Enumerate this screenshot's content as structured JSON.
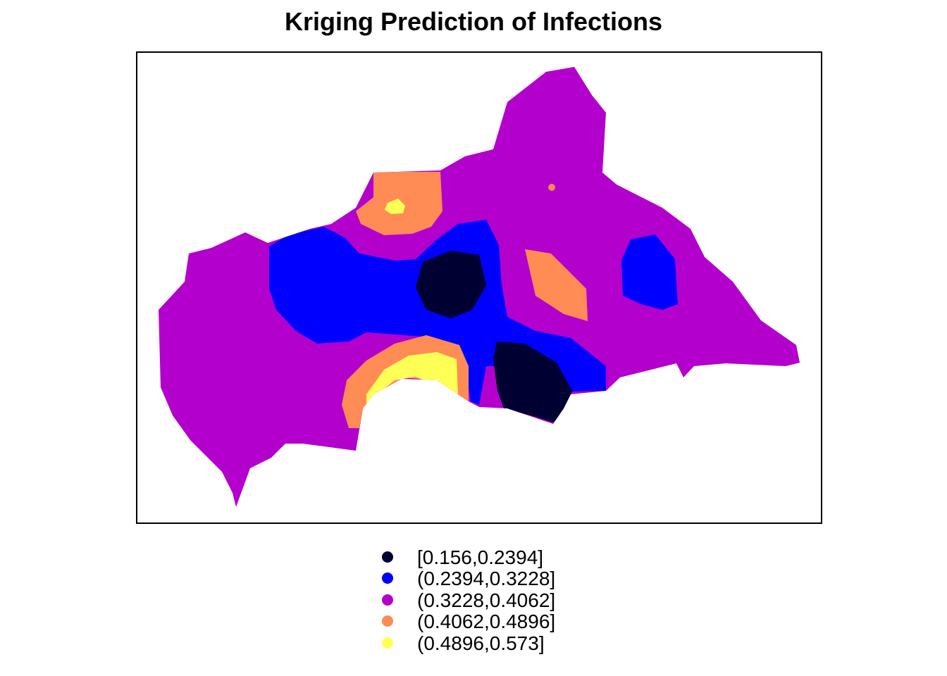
{
  "title": "Kriging Prediction of Infections",
  "legend": {
    "items": [
      {
        "label": "[0.156,0.2394]",
        "color": "#000033"
      },
      {
        "label": "(0.2394,0.3228]",
        "color": "#0000FF"
      },
      {
        "label": "(0.3228,0.4062]",
        "color": "#B300CC"
      },
      {
        "label": "(0.4062,0.4896]",
        "color": "#FF8B55"
      },
      {
        "label": "(0.4896,0.573]",
        "color": "#FFFF55"
      }
    ]
  },
  "map_data": {
    "type": "classified point grid (kriging prediction)",
    "classes": [
      {
        "range": "[0.156,0.2394]",
        "color": "#000033"
      },
      {
        "range": "(0.2394,0.3228]",
        "color": "#0000FF"
      },
      {
        "range": "(0.3228,0.4062]",
        "color": "#B300CC"
      },
      {
        "range": "(0.4062,0.4896]",
        "color": "#FF8B55"
      },
      {
        "range": "(0.4896,0.573]",
        "color": "#FFFF55"
      }
    ],
    "axes": "none",
    "legend_position": "bottom-center"
  }
}
